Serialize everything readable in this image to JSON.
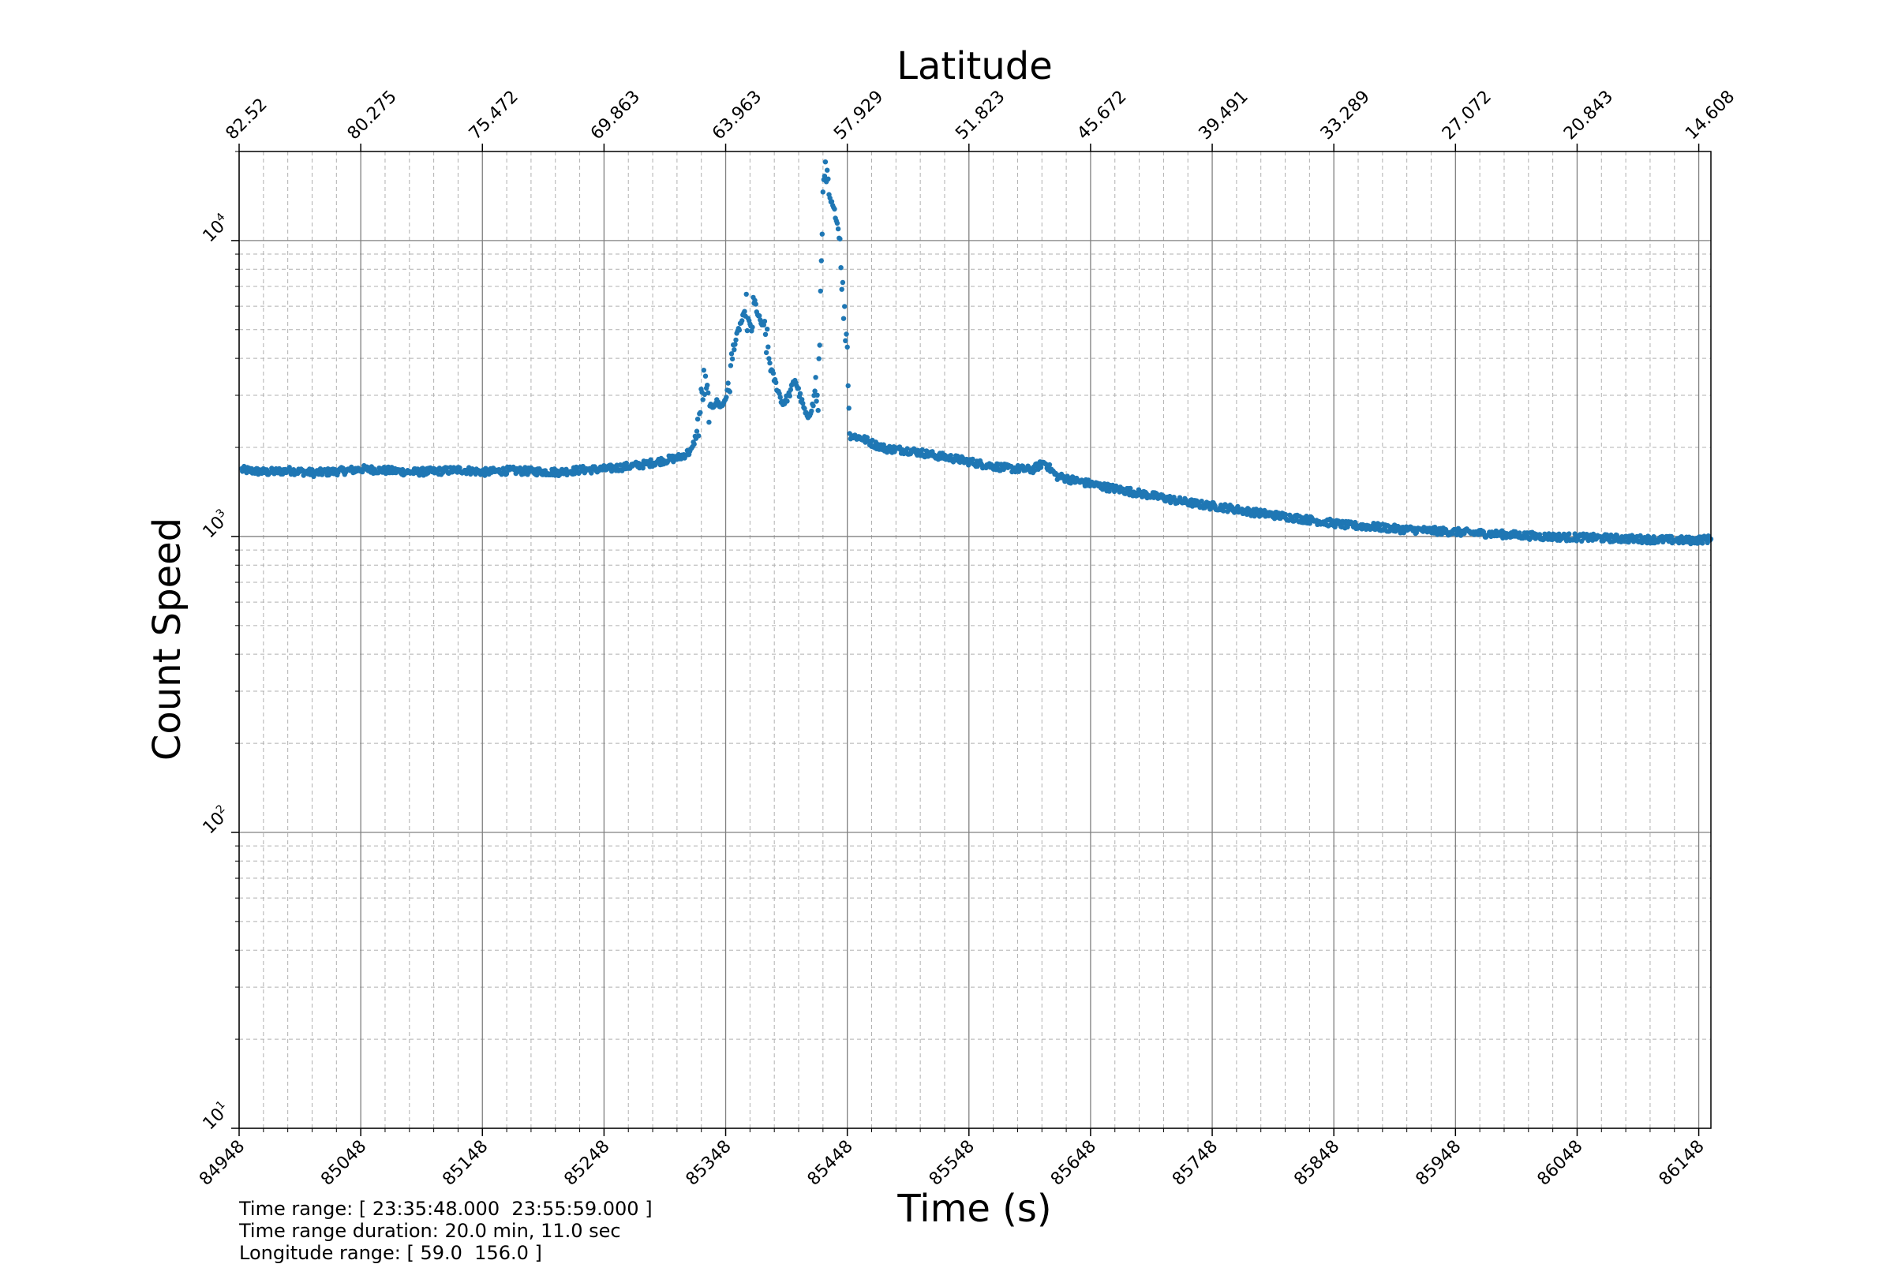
{
  "chart_data": {
    "type": "scatter",
    "title": "Latitude",
    "xlabel": "Time (s)",
    "ylabel": "Count Speed",
    "ylim": [
      10,
      20000
    ],
    "xlim": [
      84948,
      86158
    ],
    "y_scale": "log",
    "grid": true,
    "x_ticks": [
      "84948",
      "85048",
      "85148",
      "85248",
      "85348",
      "85448",
      "85548",
      "85648",
      "85748",
      "85848",
      "85948",
      "86048",
      "86148"
    ],
    "top_ticks": [
      "82.52",
      "80.275",
      "75.472",
      "69.863",
      "63.963",
      "57.929",
      "51.823",
      "45.672",
      "39.491",
      "33.289",
      "27.072",
      "20.843",
      "14.608"
    ],
    "y_ticks": [
      {
        "base": "10",
        "exp": "1"
      },
      {
        "base": "10",
        "exp": "2"
      },
      {
        "base": "10",
        "exp": "3"
      },
      {
        "base": "10",
        "exp": "4"
      }
    ],
    "series_color": "#1f77b4",
    "series": [
      {
        "x": [
          84950,
          84970,
          84990,
          85010,
          85030,
          85050,
          85070,
          85090,
          85110,
          85130,
          85150,
          85170,
          85190,
          85210,
          85230,
          85250,
          85265,
          85280,
          85295,
          85310,
          85320,
          85325,
          85330,
          85335,
          85340,
          85345,
          85350,
          85355,
          85360,
          85365,
          85368,
          85372,
          85375,
          85380,
          85385,
          85390,
          85395,
          85400,
          85405,
          85410,
          85415,
          85420,
          85422,
          85424,
          85426,
          85428,
          85430,
          85433,
          85436,
          85439,
          85442,
          85445,
          85448,
          85450,
          85460,
          85470,
          85480,
          85500,
          85520,
          85540,
          85560,
          85580,
          85600,
          85610,
          85620,
          85640,
          85660,
          85680,
          85700,
          85720,
          85740,
          85760,
          85780,
          85800,
          85820,
          85840,
          85860,
          85880,
          85900,
          85920,
          85940,
          85960,
          85980,
          86000,
          86020,
          86040,
          86060,
          86080,
          86100,
          86120,
          86140,
          86158
        ],
        "y": [
          1680,
          1650,
          1670,
          1640,
          1660,
          1690,
          1670,
          1650,
          1660,
          1680,
          1650,
          1670,
          1660,
          1650,
          1680,
          1690,
          1720,
          1750,
          1800,
          1850,
          1950,
          2300,
          3300,
          2700,
          2850,
          2750,
          3100,
          4400,
          5200,
          5800,
          4700,
          6200,
          5500,
          5000,
          3700,
          3200,
          2800,
          3000,
          3400,
          2900,
          2500,
          2800,
          3300,
          2600,
          6500,
          15000,
          17000,
          14000,
          13000,
          12000,
          10000,
          5800,
          4500,
          2200,
          2150,
          2050,
          1980,
          1950,
          1880,
          1820,
          1750,
          1700,
          1680,
          1780,
          1600,
          1530,
          1470,
          1420,
          1370,
          1320,
          1280,
          1250,
          1210,
          1180,
          1150,
          1120,
          1090,
          1080,
          1060,
          1050,
          1040,
          1030,
          1020,
          1010,
          1000,
          995,
          990,
          985,
          980,
          975,
          970,
          980
        ]
      }
    ]
  },
  "footer": {
    "line1": "Time range: [ 23:35:48.000  23:55:59.000 ]",
    "line2": "Time range duration: 20.0 min, 11.0 sec",
    "line3": "Longitude range: [ 59.0  156.0 ]"
  }
}
